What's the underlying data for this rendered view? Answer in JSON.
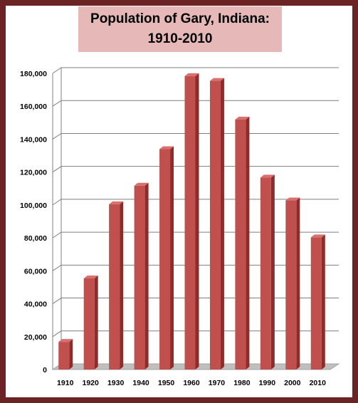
{
  "chart_data": {
    "type": "bar",
    "title_line1": "Population of Gary, Indiana:",
    "title_line2": "1910-2010",
    "categories": [
      "1910",
      "1920",
      "1930",
      "1940",
      "1950",
      "1960",
      "1970",
      "1980",
      "1990",
      "2000",
      "2010"
    ],
    "values": [
      16802,
      55378,
      100426,
      111719,
      133911,
      178320,
      175415,
      151953,
      116646,
      102746,
      80294
    ],
    "ylim": [
      0,
      180000
    ],
    "yticks": [
      "0",
      "20,000",
      "40,000",
      "60,000",
      "80,000",
      "100,000",
      "120,000",
      "140,000",
      "160,000",
      "180,000"
    ],
    "grid": true,
    "xlabel": "",
    "ylabel": "",
    "colors": {
      "bar_front": "#c0504d",
      "bar_side": "#8c2d2b",
      "bar_top": "#d9706d",
      "floor": "#bfbfbf",
      "frame": "#6b2323",
      "title_bg": "#e6b8b7"
    }
  }
}
